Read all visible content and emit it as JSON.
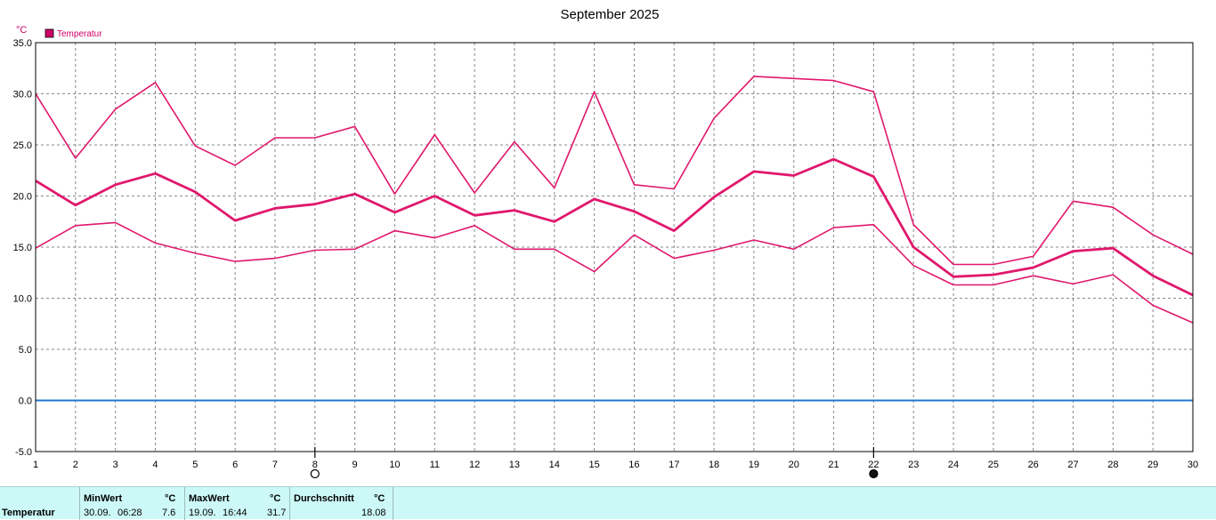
{
  "chart_data": {
    "type": "line",
    "title": "September 2025",
    "unit_label": "°C",
    "legend": [
      {
        "name": "Temperatur",
        "color": "#cc0066"
      }
    ],
    "x": [
      1,
      2,
      3,
      4,
      5,
      6,
      7,
      8,
      9,
      10,
      11,
      12,
      13,
      14,
      15,
      16,
      17,
      18,
      19,
      20,
      21,
      22,
      23,
      24,
      25,
      26,
      27,
      28,
      29,
      30
    ],
    "xlim": [
      1,
      30
    ],
    "ylim": [
      -5,
      35
    ],
    "yticks": [
      "35.0",
      "30.0",
      "25.0",
      "20.0",
      "15.0",
      "10.0",
      "5.0",
      "0.0",
      "-5.0"
    ],
    "grid": true,
    "zero_line_color": "#1f78c8",
    "series": [
      {
        "role": "max",
        "color": "#e0186c",
        "width": 1.6,
        "values": [
          30.0,
          23.7,
          28.5,
          31.1,
          24.9,
          23.0,
          25.7,
          25.7,
          26.8,
          20.2,
          26.0,
          20.3,
          25.3,
          20.8,
          30.2,
          21.1,
          20.7,
          27.6,
          31.7,
          31.5,
          31.3,
          30.2,
          17.2,
          13.3,
          13.3,
          14.1,
          19.5,
          18.9,
          16.2,
          14.3
        ]
      },
      {
        "role": "mean",
        "color": "#e0186c",
        "width": 2.8,
        "values": [
          21.5,
          19.1,
          21.1,
          22.2,
          20.4,
          17.6,
          18.8,
          19.2,
          20.2,
          18.4,
          20.0,
          18.1,
          18.6,
          17.5,
          19.7,
          18.5,
          16.6,
          19.9,
          22.4,
          22.0,
          23.6,
          21.9,
          15.0,
          12.1,
          12.3,
          13.0,
          14.6,
          14.9,
          12.2,
          10.3
        ]
      },
      {
        "role": "min",
        "color": "#e0186c",
        "width": 1.6,
        "values": [
          14.9,
          17.1,
          17.4,
          15.4,
          14.4,
          13.6,
          13.9,
          14.7,
          14.8,
          16.6,
          15.9,
          17.1,
          14.8,
          14.8,
          12.6,
          16.2,
          13.9,
          14.7,
          15.7,
          14.8,
          16.9,
          17.2,
          13.2,
          11.3,
          11.3,
          12.2,
          11.4,
          12.3,
          9.3,
          7.6
        ]
      }
    ],
    "moon_markers": [
      {
        "day": 8,
        "phase": "full-moon"
      },
      {
        "day": 22,
        "phase": "new-moon"
      }
    ]
  },
  "stats": {
    "row_label": "Temperatur",
    "min": {
      "header": "MinWert",
      "unit": "°C",
      "date": "30.09.",
      "time": "06:28",
      "value": "7.6"
    },
    "max": {
      "header": "MaxWert",
      "unit": "°C",
      "date": "19.09.",
      "time": "16:44",
      "value": "31.7"
    },
    "avg": {
      "header": "Durchschnitt",
      "unit": "°C",
      "value": "18.08"
    }
  }
}
